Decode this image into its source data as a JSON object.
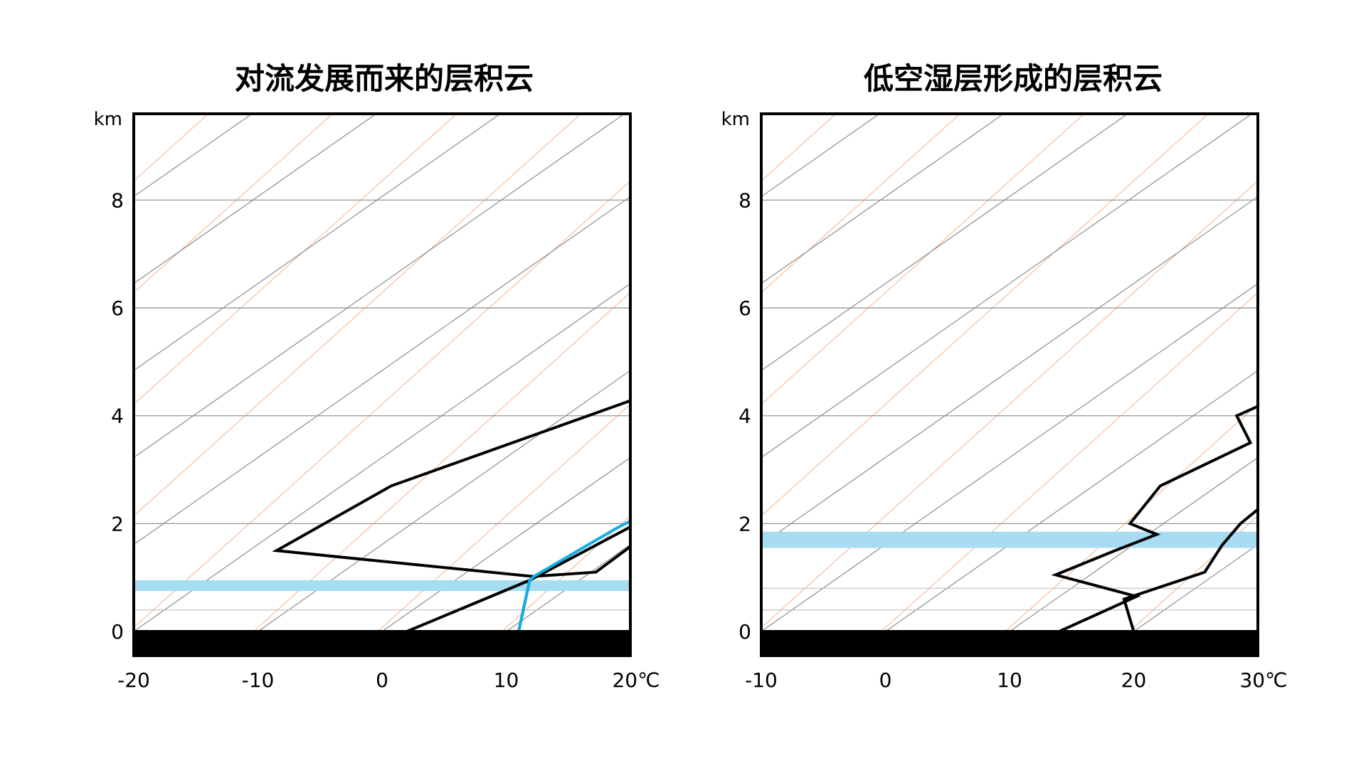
{
  "chart_data": [
    {
      "type": "line",
      "title": "对流发展而来的层积云",
      "y_unit": "km",
      "x_unit": "℃",
      "x_ticks": [
        "-20",
        "-10",
        "0",
        "10",
        "20"
      ],
      "y_ticks": [
        "0",
        "2",
        "4",
        "6",
        "8"
      ],
      "xlim": [
        -20,
        20
      ],
      "ylim": [
        0,
        9.6
      ],
      "skew": 6.2,
      "series": [
        {
          "role": "temperature",
          "points": [
            [
              -2.8,
              9.6
            ],
            [
              -1.4,
              8.9
            ],
            [
              -10.2,
              7.1
            ],
            [
              -3.4,
              4.8
            ],
            [
              -16,
              2.7
            ],
            [
              -17.8,
              1.5
            ],
            [
              5.8,
              1.02
            ],
            [
              10.4,
              1.1
            ],
            [
              10.2,
              1.7
            ],
            [
              9.4,
              2.2
            ],
            [
              7.7,
              3.6
            ],
            [
              2.7,
              6.0
            ],
            [
              -1.8,
              7.8
            ],
            [
              -5.0,
              9.6
            ]
          ]
        },
        {
          "role": "dew-point",
          "points": [
            [
              11,
              0
            ],
            [
              6,
              0.95
            ],
            [
              2,
              0
            ],
            [
              6,
              0.95
            ],
            [
              8.5,
              2.2
            ],
            [
              8.4,
              3.0
            ],
            [
              2.2,
              4.4
            ],
            [
              -2.5,
              5.4
            ],
            [
              -9.5,
              7.6
            ],
            [
              -16,
              9.6
            ]
          ]
        },
        {
          "role": "parcel",
          "color": "#12aee6",
          "points": [
            [
              11,
              0
            ],
            [
              6,
              0.95
            ],
            [
              5.9,
              1.02
            ],
            [
              7.0,
              1.9
            ],
            [
              8.5,
              2.6
            ],
            [
              10.5,
              3.2
            ],
            [
              10.2,
              4.0
            ],
            [
              7.0,
              5.0
            ],
            [
              0.5,
              6.6
            ],
            [
              -8.5,
              9.0
            ],
            [
              -16.5,
              9.6
            ]
          ]
        }
      ],
      "cloud_band": {
        "base": 0.75,
        "top": 0.95,
        "color": "#a7dcf3"
      },
      "ground_color": "#000000"
    },
    {
      "type": "line",
      "title": "低空湿层形成的层积云",
      "y_unit": "km",
      "x_unit": "℃",
      "x_ticks": [
        "-10",
        "0",
        "10",
        "20",
        "30"
      ],
      "y_ticks": [
        "0",
        "2",
        "4",
        "6",
        "8"
      ],
      "xlim": [
        -10,
        30
      ],
      "ylim": [
        0,
        9.6
      ],
      "skew": 6.2,
      "series": [
        {
          "role": "temperature",
          "points": [
            [
              20,
              0
            ],
            [
              15.5,
              0.6
            ],
            [
              18.9,
              1.1
            ],
            [
              17.2,
              1.6
            ],
            [
              16.2,
              2.0
            ],
            [
              15.3,
              3.0
            ],
            [
              14.6,
              4.0
            ],
            [
              14.0,
              5.3
            ],
            [
              7.5,
              6.7
            ],
            [
              2.8,
              8.6
            ],
            [
              -2.0,
              9.6
            ]
          ]
        },
        {
          "role": "dew-point",
          "points": [
            [
              -8,
              9.6
            ],
            [
              0.7,
              8.6
            ],
            [
              -0.1,
              7.3
            ],
            [
              -0.6,
              6.5
            ],
            [
              4.9,
              5.3
            ],
            [
              6.7,
              4.9
            ],
            [
              3.5,
              4.0
            ],
            [
              7.7,
              3.5
            ],
            [
              5.4,
              2.7
            ],
            [
              7.3,
              2.0
            ],
            [
              10.7,
              1.8
            ],
            [
              9.2,
              1.5
            ],
            [
              7.2,
              1.05
            ],
            [
              16.2,
              0.65
            ],
            [
              14,
              0
            ]
          ]
        }
      ],
      "cloud_band": {
        "base": 1.55,
        "top": 1.85,
        "color": "#a7dcf3"
      },
      "ground_color": "#000000"
    }
  ]
}
